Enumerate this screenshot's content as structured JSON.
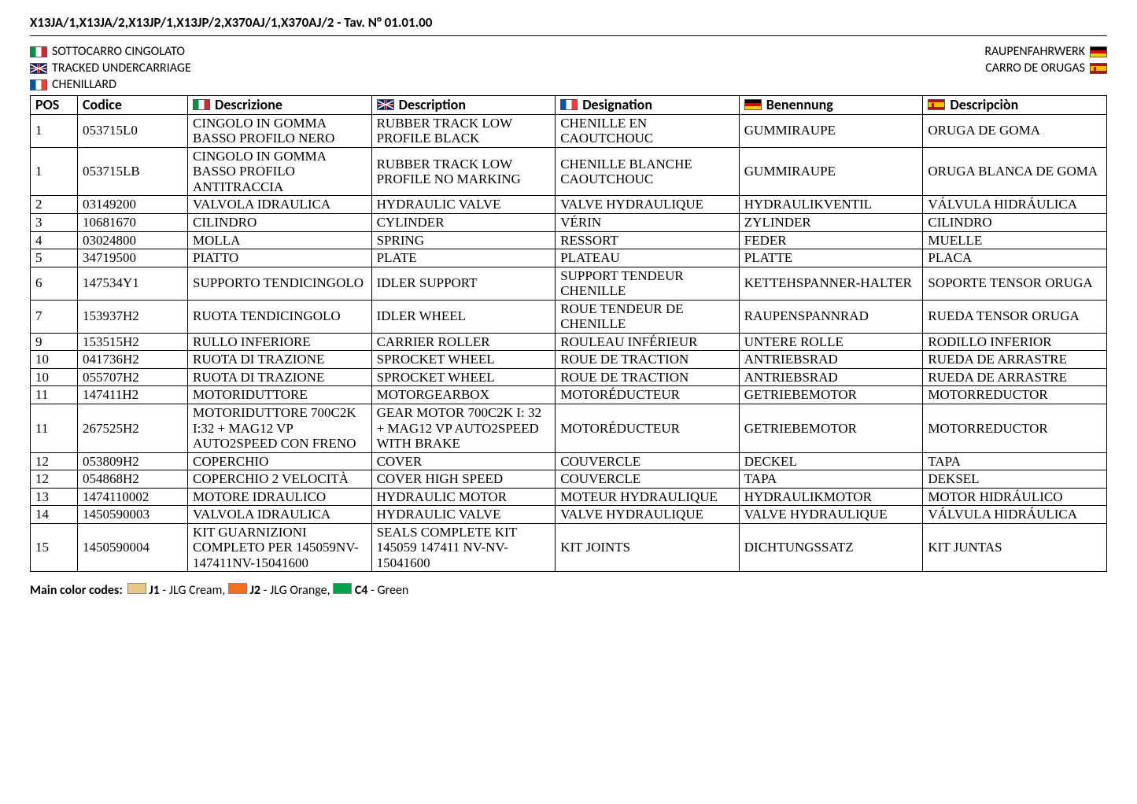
{
  "page_title": "X13JA/1,X13JA/2,X13JP/1,X13JP/2,X370AJ/1,X370AJ/2 - Tav. N° 01.01.00",
  "section_names": {
    "it": "SOTTOCARRO CINGOLATO",
    "en": "TRACKED UNDERCARRIAGE",
    "fr": "CHENILLARD",
    "de": "RAUPENFAHRWERK",
    "es": "CARRO DE ORUGAS"
  },
  "columns": {
    "pos": "POS",
    "code": "Codice",
    "it": "Descrizione",
    "en": "Description",
    "fr": "Designation",
    "de": "Benennung",
    "es": "Descripciòn"
  },
  "table_style": {
    "border_color": "#000000",
    "header_fontsize": 18,
    "cell_fontsize": 17,
    "background_color": "#ffffff"
  },
  "rows": [
    {
      "pos": "1",
      "code": "053715L0",
      "it": "CINGOLO IN GOMMA BASSO PROFILO NERO",
      "en": "RUBBER TRACK LOW PROFILE BLACK",
      "fr": "CHENILLE EN CAOUTCHOUC",
      "de": "GUMMIRAUPE",
      "es": "ORUGA DE GOMA"
    },
    {
      "pos": "1",
      "code": "053715LB",
      "it": "CINGOLO IN GOMMA BASSO PROFILO ANTITRACCIA",
      "en": "RUBBER TRACK LOW PROFILE NO MARKING",
      "fr": "CHENILLE BLANCHE CAOUTCHOUC",
      "de": "GUMMIRAUPE",
      "es": "ORUGA BLANCA DE GOMA"
    },
    {
      "pos": "2",
      "code": "03149200",
      "it": "VALVOLA IDRAULICA",
      "en": "HYDRAULIC VALVE",
      "fr": "VALVE HYDRAULIQUE",
      "de": "HYDRAULIKVENTIL",
      "es": "VÁLVULA HIDRÁULICA"
    },
    {
      "pos": "3",
      "code": "10681670",
      "it": "CILINDRO",
      "en": "CYLINDER",
      "fr": "VÉRIN",
      "de": "ZYLINDER",
      "es": "CILINDRO"
    },
    {
      "pos": "4",
      "code": "03024800",
      "it": "MOLLA",
      "en": "SPRING",
      "fr": "RESSORT",
      "de": "FEDER",
      "es": "MUELLE"
    },
    {
      "pos": "5",
      "code": "34719500",
      "it": "PIATTO",
      "en": "PLATE",
      "fr": "PLATEAU",
      "de": "PLATTE",
      "es": "PLACA"
    },
    {
      "pos": "6",
      "code": "147534Y1",
      "it": "SUPPORTO TENDICINGOLO",
      "en": "IDLER SUPPORT",
      "fr": "SUPPORT TENDEUR CHENILLE",
      "de": "KETTEHSPANNER-HALTER",
      "es": "SOPORTE TENSOR ORUGA"
    },
    {
      "pos": "7",
      "code": "153937H2",
      "it": "RUOTA TENDICINGOLO",
      "en": "IDLER WHEEL",
      "fr": "ROUE TENDEUR DE CHENILLE",
      "de": "RAUPENSPANNRAD",
      "es": "RUEDA TENSOR ORUGA"
    },
    {
      "pos": "9",
      "code": "153515H2",
      "it": "RULLO INFERIORE",
      "en": "CARRIER ROLLER",
      "fr": "ROULEAU INFÉRIEUR",
      "de": "UNTERE ROLLE",
      "es": "RODILLO INFERIOR"
    },
    {
      "pos": "10",
      "code": "041736H2",
      "it": "RUOTA DI  TRAZIONE",
      "en": "SPROCKET WHEEL",
      "fr": "ROUE DE TRACTION",
      "de": "ANTRIEBSRAD",
      "es": "RUEDA DE ARRASTRE"
    },
    {
      "pos": "10",
      "code": "055707H2",
      "it": "RUOTA DI TRAZIONE",
      "en": "SPROCKET WHEEL",
      "fr": "ROUE DE TRACTION",
      "de": "ANTRIEBSRAD",
      "es": "RUEDA DE ARRASTRE"
    },
    {
      "pos": "11",
      "code": "147411H2",
      "it": "MOTORIDUTTORE",
      "en": "MOTORGEARBOX",
      "fr": "MOTORÉDUCTEUR",
      "de": "GETRIEBEMOTOR",
      "es": "MOTORREDUCTOR"
    },
    {
      "pos": "11",
      "code": "267525H2",
      "it": "MOTORIDUTTORE 700C2K I:32 + MAG12 VP AUTO2SPEED CON FRENO",
      "en": "GEAR MOTOR 700C2K I: 32 + MAG12 VP AUTO2SPEED WITH BRAKE",
      "fr": "MOTORÉDUCTEUR",
      "de": "GETRIEBEMOTOR",
      "es": "MOTORREDUCTOR"
    },
    {
      "pos": "12",
      "code": "053809H2",
      "it": "COPERCHIO",
      "en": "COVER",
      "fr": "COUVERCLE",
      "de": "DECKEL",
      "es": "TAPA"
    },
    {
      "pos": "12",
      "code": "054868H2",
      "it": "COPERCHIO 2 VELOCITÀ",
      "en": "COVER HIGH SPEED",
      "fr": "COUVERCLE",
      "de": "TAPA",
      "es": "DEKSEL"
    },
    {
      "pos": "13",
      "code": "1474110002",
      "it": "MOTORE IDRAULICO",
      "en": "HYDRAULIC MOTOR",
      "fr": "MOTEUR HYDRAULIQUE",
      "de": "HYDRAULIKMOTOR",
      "es": "MOTOR HIDRÁULICO"
    },
    {
      "pos": "14",
      "code": "1450590003",
      "it": "VALVOLA IDRAULICA",
      "en": "HYDRAULIC VALVE",
      "fr": "VALVE HYDRAULIQUE",
      "de": "VALVE HYDRAULIQUE",
      "es": "VÁLVULA HIDRÁULICA"
    },
    {
      "pos": "15",
      "code": "1450590004",
      "it": "KIT GUARNIZIONI COMPLETO PER 145059NV-147411NV-15041600",
      "en": "SEALS COMPLETE KIT 145059 147411 NV-NV-15041600",
      "fr": "KIT JOINTS",
      "de": "DICHTUNGSSATZ",
      "es": "KIT JUNTAS"
    }
  ],
  "footer": {
    "label": "Main color codes:",
    "codes": [
      {
        "code": "J1",
        "name": "JLG Cream",
        "color": "#e8c987"
      },
      {
        "code": "J2",
        "name": "JLG Orange",
        "color": "#f36e21"
      },
      {
        "code": "C4",
        "name": "Green",
        "color": "#00a14b"
      }
    ],
    "sep1": " - ",
    "comma": ",  "
  }
}
